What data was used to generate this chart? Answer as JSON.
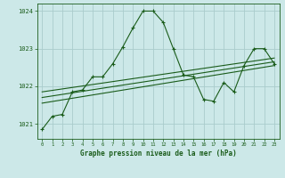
{
  "title": "Graphe pression niveau de la mer (hPa)",
  "background_color": "#cce8e8",
  "grid_color": "#aacccc",
  "line_color": "#1a5c1a",
  "xlim": [
    -0.5,
    23.5
  ],
  "ylim": [
    1020.6,
    1024.2
  ],
  "yticks": [
    1021,
    1022,
    1023,
    1024
  ],
  "xticks": [
    0,
    1,
    2,
    3,
    4,
    5,
    6,
    7,
    8,
    9,
    10,
    11,
    12,
    13,
    14,
    15,
    16,
    17,
    18,
    19,
    20,
    21,
    22,
    23
  ],
  "series1": {
    "x": [
      0,
      1,
      2,
      3,
      4,
      5,
      6,
      7,
      8,
      9,
      10,
      11,
      12,
      13,
      14,
      15,
      16,
      17,
      18,
      19,
      20,
      21,
      22,
      23
    ],
    "y": [
      1020.85,
      1021.2,
      1021.25,
      1021.85,
      1021.9,
      1022.25,
      1022.25,
      1022.6,
      1023.05,
      1023.55,
      1024.0,
      1024.0,
      1023.7,
      1023.0,
      1022.3,
      1022.25,
      1021.65,
      1021.6,
      1022.1,
      1021.85,
      1022.55,
      1023.0,
      1023.0,
      1022.6
    ]
  },
  "series2": {
    "x": [
      0,
      23
    ],
    "y": [
      1021.55,
      1022.55
    ]
  },
  "series3": {
    "x": [
      0,
      23
    ],
    "y": [
      1021.7,
      1022.65
    ]
  },
  "series4": {
    "x": [
      0,
      23
    ],
    "y": [
      1021.85,
      1022.75
    ]
  }
}
